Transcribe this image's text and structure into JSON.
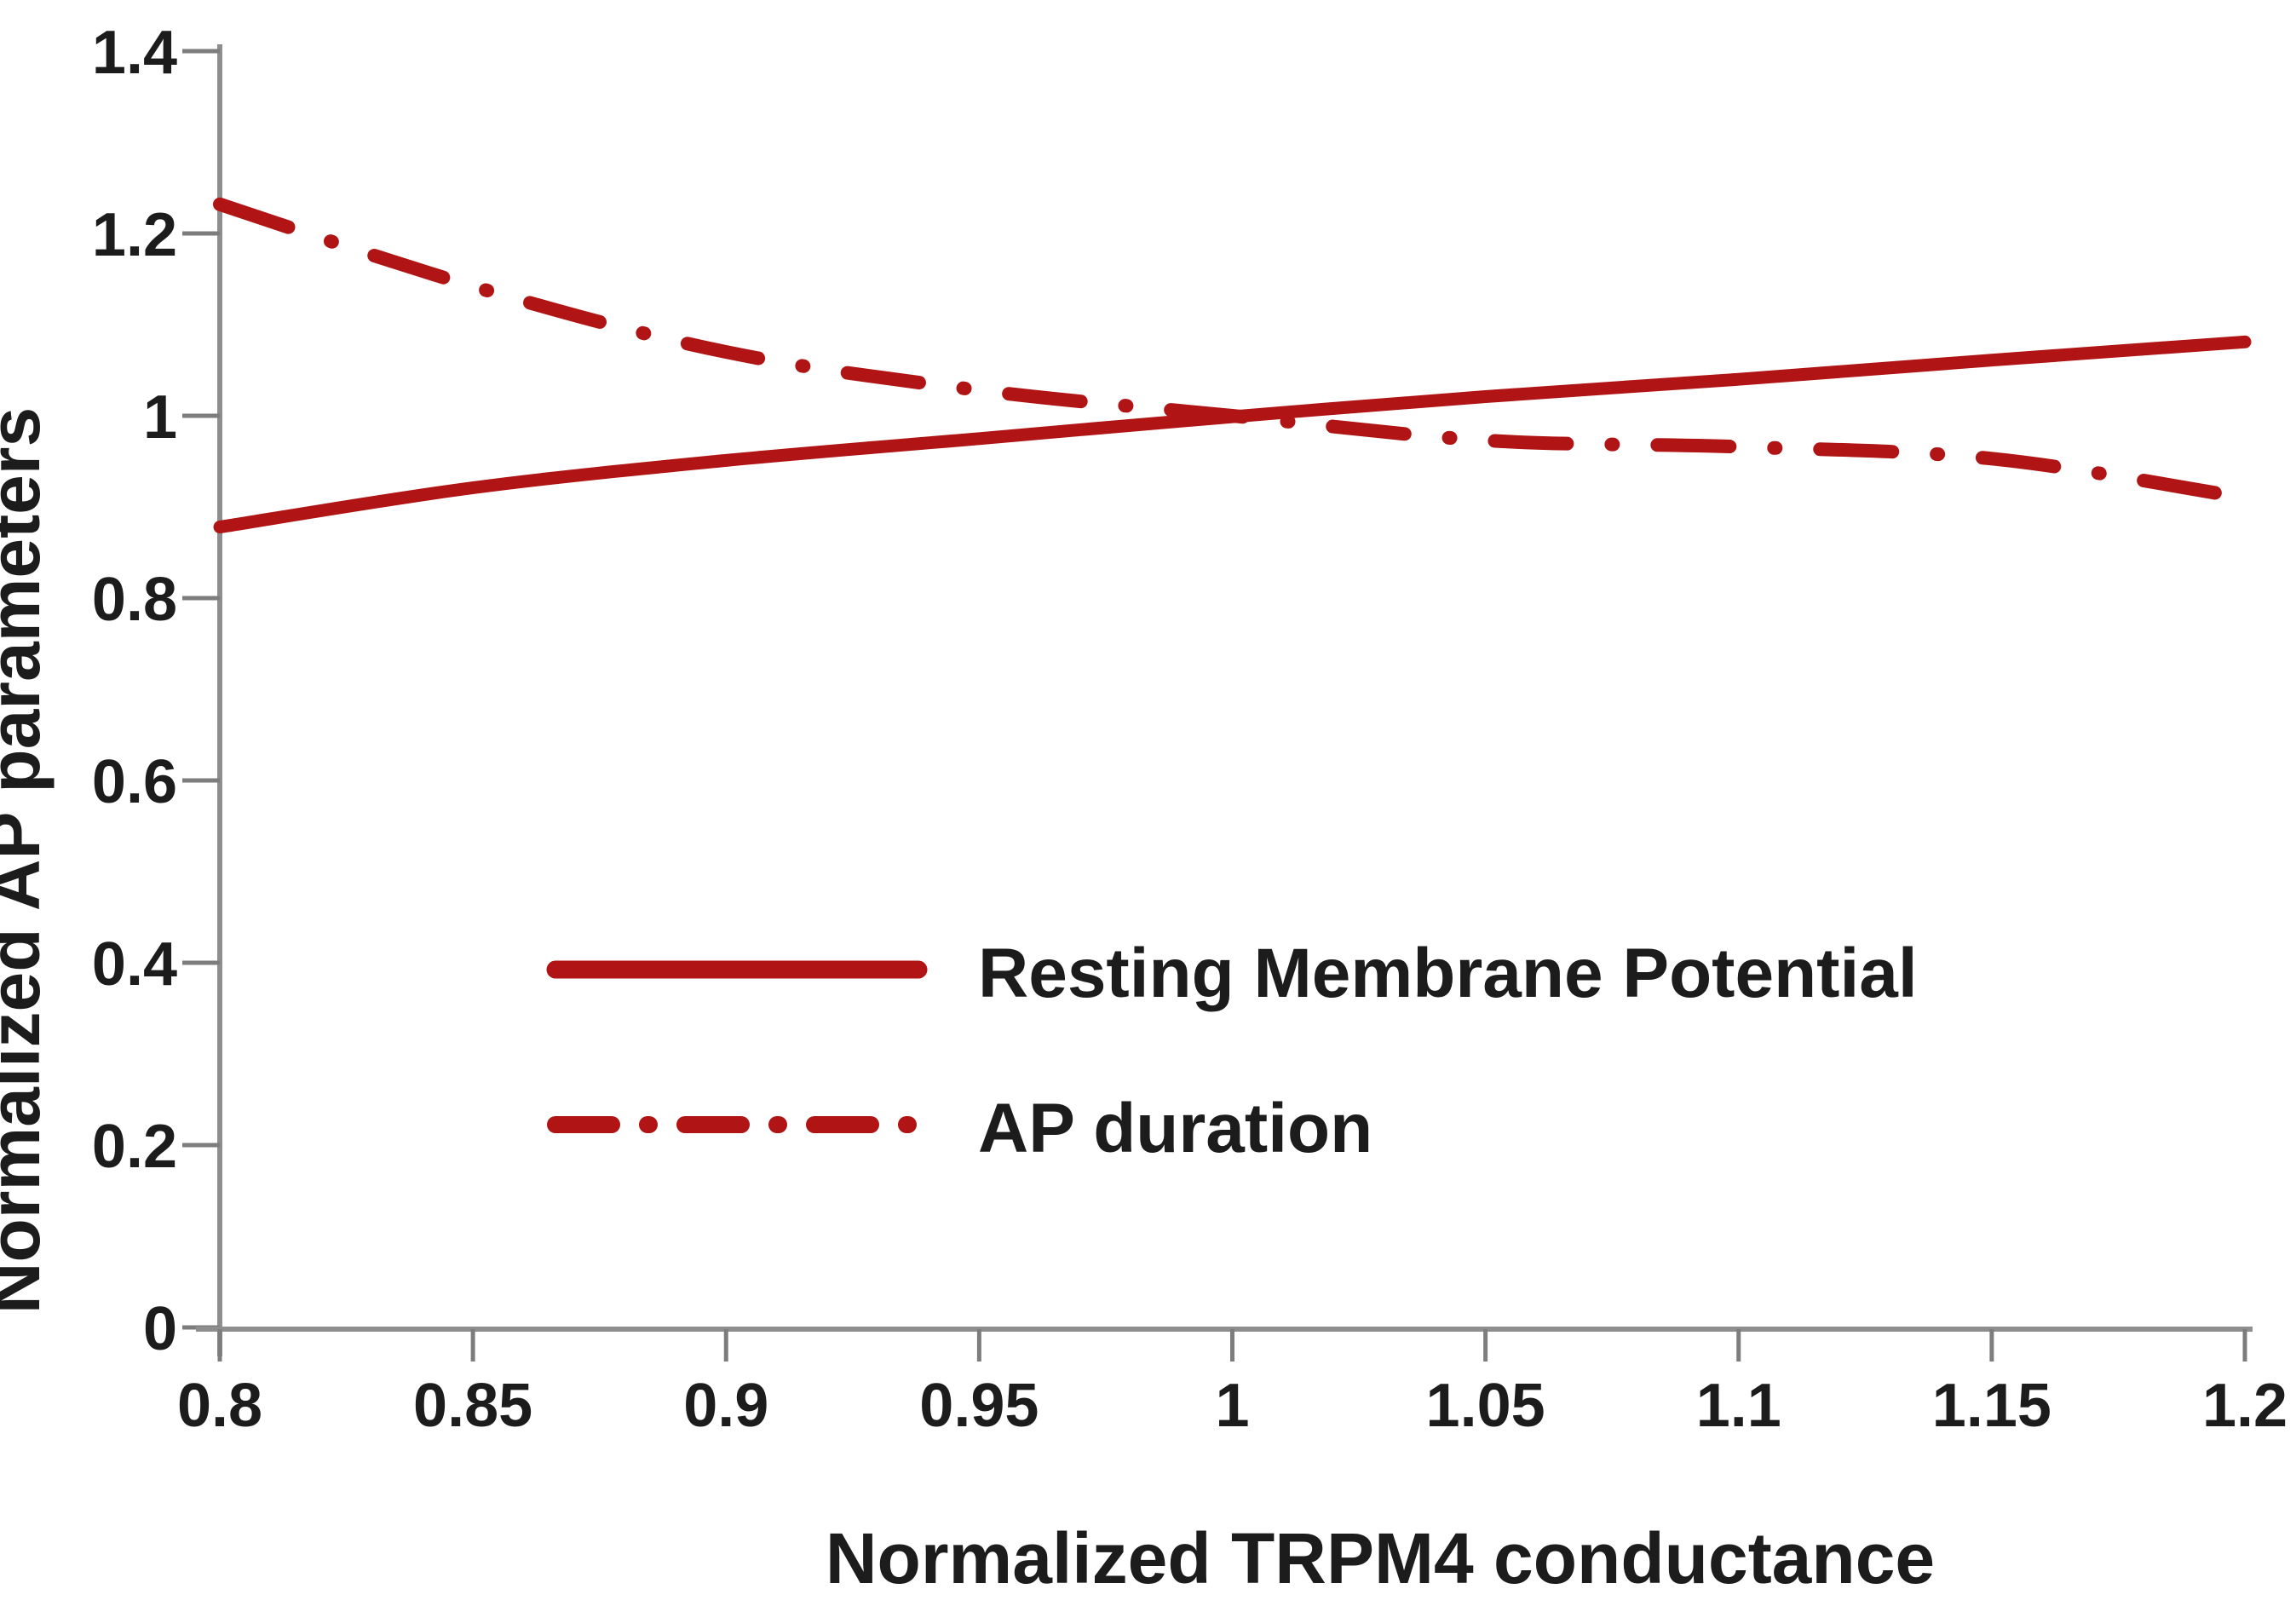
{
  "figure": {
    "background": "#ffffff",
    "text_color": "#1c1c1c",
    "axis_color": "#8e8e8e",
    "line_color": "#b11414"
  },
  "axes": {
    "x": {
      "title": "Normalized TRPM4 conductance",
      "tick_labels": [
        "0.8",
        "0.85",
        "0.9",
        "0.95",
        "1",
        "1.05",
        "1.1",
        "1.15",
        "1.2"
      ],
      "range": [
        0.8,
        1.2
      ]
    },
    "y": {
      "title": "Normalized AP parameters",
      "tick_labels": [
        "1.4",
        "1.2",
        "1",
        "0.8",
        "0.6",
        "0.4",
        "0.2",
        "0"
      ],
      "range": [
        0,
        1.4
      ]
    }
  },
  "legend": {
    "items": [
      {
        "label": "Resting Membrane Potential",
        "style": "solid"
      },
      {
        "label": "AP duration",
        "style": "dash-dot"
      }
    ]
  },
  "chart_data": {
    "type": "line",
    "title": "",
    "xlabel": "Normalized TRPM4 conductance",
    "ylabel": "Normalized AP parameters",
    "x": [
      0.8,
      0.85,
      0.9,
      0.95,
      1.0,
      1.05,
      1.1,
      1.15,
      1.2
    ],
    "series": [
      {
        "name": "Resting Membrane Potential",
        "style": "solid",
        "color": "#b11414",
        "values": [
          0.878,
          0.921,
          0.951,
          0.975,
          0.999,
          1.021,
          1.04,
          1.061,
          1.081
        ]
      },
      {
        "name": "AP duration",
        "style": "dash-dot",
        "color": "#b11414",
        "values": [
          1.232,
          1.142,
          1.07,
          1.028,
          1.0,
          0.973,
          0.966,
          0.953,
          0.91
        ]
      }
    ],
    "xlim": [
      0.8,
      1.2
    ],
    "ylim": [
      0,
      1.4
    ],
    "grid": false,
    "legend_position": "inside-lower-center"
  }
}
